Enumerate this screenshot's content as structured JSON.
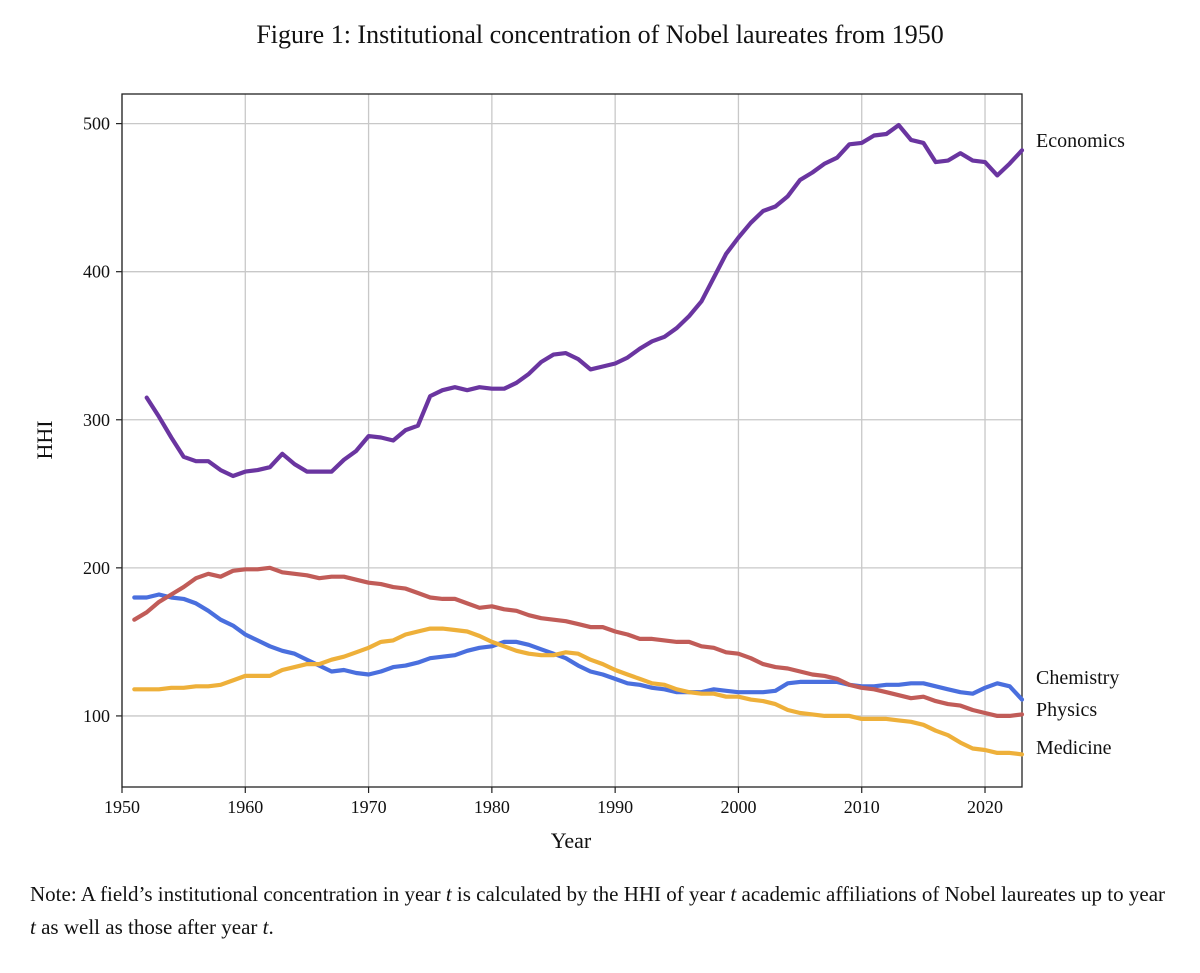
{
  "figure": {
    "caption": "Figure 1: Institutional concentration of Nobel laureates from 1950",
    "note": {
      "p1": "Note: A field’s institutional concentration in year ",
      "t1": "t",
      "p2": " is calculated by the HHI of year ",
      "t2": "t",
      "p3": " academic affiliations of Nobel laureates up to year ",
      "t3": "t",
      "p4": " as well as those after year ",
      "t4": "t",
      "p5": "."
    }
  },
  "chart_data": {
    "type": "line",
    "xlabel": "Year",
    "ylabel": "HHI",
    "xlim": [
      1950,
      2023
    ],
    "ylim": [
      52,
      520
    ],
    "xticks": [
      1950,
      1960,
      1970,
      1980,
      1990,
      2000,
      2010,
      2020
    ],
    "yticks": [
      100,
      200,
      300,
      400,
      500
    ],
    "grid": true,
    "legend": "inline-right",
    "series": [
      {
        "name": "Economics",
        "color": "#6a35a0",
        "x": [
          1952,
          1953,
          1954,
          1955,
          1956,
          1957,
          1958,
          1959,
          1960,
          1961,
          1962,
          1963,
          1964,
          1965,
          1966,
          1967,
          1968,
          1969,
          1970,
          1971,
          1972,
          1973,
          1974,
          1975,
          1976,
          1977,
          1978,
          1979,
          1980,
          1981,
          1982,
          1983,
          1984,
          1985,
          1986,
          1987,
          1988,
          1989,
          1990,
          1991,
          1992,
          1993,
          1994,
          1995,
          1996,
          1997,
          1998,
          1999,
          2000,
          2001,
          2002,
          2003,
          2004,
          2005,
          2006,
          2007,
          2008,
          2009,
          2010,
          2011,
          2012,
          2013,
          2014,
          2015,
          2016,
          2017,
          2018,
          2019,
          2020,
          2021,
          2022,
          2023
        ],
        "values": [
          315,
          302,
          288,
          275,
          272,
          272,
          266,
          262,
          265,
          266,
          268,
          277,
          270,
          265,
          265,
          265,
          273,
          279,
          289,
          288,
          286,
          293,
          296,
          316,
          320,
          322,
          320,
          322,
          321,
          321,
          325,
          331,
          339,
          344,
          345,
          341,
          334,
          336,
          338,
          342,
          348,
          353,
          356,
          362,
          370,
          380,
          396,
          412,
          423,
          433,
          441,
          444,
          451,
          462,
          467,
          473,
          477,
          486,
          487,
          492,
          493,
          499,
          489,
          487,
          474,
          475,
          480,
          475,
          474,
          465,
          473,
          482
        ]
      },
      {
        "name": "Chemistry",
        "color": "#4a6fde",
        "x": [
          1951,
          1952,
          1953,
          1954,
          1955,
          1956,
          1957,
          1958,
          1959,
          1960,
          1961,
          1962,
          1963,
          1964,
          1965,
          1966,
          1967,
          1968,
          1969,
          1970,
          1971,
          1972,
          1973,
          1974,
          1975,
          1976,
          1977,
          1978,
          1979,
          1980,
          1981,
          1982,
          1983,
          1984,
          1985,
          1986,
          1987,
          1988,
          1989,
          1990,
          1991,
          1992,
          1993,
          1994,
          1995,
          1996,
          1997,
          1998,
          1999,
          2000,
          2001,
          2002,
          2003,
          2004,
          2005,
          2006,
          2007,
          2008,
          2009,
          2010,
          2011,
          2012,
          2013,
          2014,
          2015,
          2016,
          2017,
          2018,
          2019,
          2020,
          2021,
          2022,
          2023
        ],
        "values": [
          180,
          180,
          182,
          180,
          179,
          176,
          171,
          165,
          161,
          155,
          151,
          147,
          144,
          142,
          138,
          134,
          130,
          131,
          129,
          128,
          130,
          133,
          134,
          136,
          139,
          140,
          141,
          144,
          146,
          147,
          150,
          150,
          148,
          145,
          142,
          139,
          134,
          130,
          128,
          125,
          122,
          121,
          119,
          118,
          116,
          116,
          116,
          118,
          117,
          116,
          116,
          116,
          117,
          122,
          123,
          123,
          123,
          123,
          121,
          120,
          120,
          121,
          121,
          122,
          122,
          120,
          118,
          116,
          115,
          119,
          122,
          120,
          111
        ]
      },
      {
        "name": "Physics",
        "color": "#c15c58",
        "x": [
          1951,
          1952,
          1953,
          1954,
          1955,
          1956,
          1957,
          1958,
          1959,
          1960,
          1961,
          1962,
          1963,
          1964,
          1965,
          1966,
          1967,
          1968,
          1969,
          1970,
          1971,
          1972,
          1973,
          1974,
          1975,
          1976,
          1977,
          1978,
          1979,
          1980,
          1981,
          1982,
          1983,
          1984,
          1985,
          1986,
          1987,
          1988,
          1989,
          1990,
          1991,
          1992,
          1993,
          1994,
          1995,
          1996,
          1997,
          1998,
          1999,
          2000,
          2001,
          2002,
          2003,
          2004,
          2005,
          2006,
          2007,
          2008,
          2009,
          2010,
          2011,
          2012,
          2013,
          2014,
          2015,
          2016,
          2017,
          2018,
          2019,
          2020,
          2021,
          2022,
          2023
        ],
        "values": [
          165,
          170,
          177,
          182,
          187,
          193,
          196,
          194,
          198,
          199,
          199,
          200,
          197,
          196,
          195,
          193,
          194,
          194,
          192,
          190,
          189,
          187,
          186,
          183,
          180,
          179,
          179,
          176,
          173,
          174,
          172,
          171,
          168,
          166,
          165,
          164,
          162,
          160,
          160,
          157,
          155,
          152,
          152,
          151,
          150,
          150,
          147,
          146,
          143,
          142,
          139,
          135,
          133,
          132,
          130,
          128,
          127,
          125,
          121,
          119,
          118,
          116,
          114,
          112,
          113,
          110,
          108,
          107,
          104,
          102,
          100,
          100,
          101
        ]
      },
      {
        "name": "Medicine",
        "color": "#eeb03a",
        "x": [
          1951,
          1952,
          1953,
          1954,
          1955,
          1956,
          1957,
          1958,
          1959,
          1960,
          1961,
          1962,
          1963,
          1964,
          1965,
          1966,
          1967,
          1968,
          1969,
          1970,
          1971,
          1972,
          1973,
          1974,
          1975,
          1976,
          1977,
          1978,
          1979,
          1980,
          1981,
          1982,
          1983,
          1984,
          1985,
          1986,
          1987,
          1988,
          1989,
          1990,
          1991,
          1992,
          1993,
          1994,
          1995,
          1996,
          1997,
          1998,
          1999,
          2000,
          2001,
          2002,
          2003,
          2004,
          2005,
          2006,
          2007,
          2008,
          2009,
          2010,
          2011,
          2012,
          2013,
          2014,
          2015,
          2016,
          2017,
          2018,
          2019,
          2020,
          2021,
          2022,
          2023
        ],
        "values": [
          118,
          118,
          118,
          119,
          119,
          120,
          120,
          121,
          124,
          127,
          127,
          127,
          131,
          133,
          135,
          135,
          138,
          140,
          143,
          146,
          150,
          151,
          155,
          157,
          159,
          159,
          158,
          157,
          154,
          150,
          147,
          144,
          142,
          141,
          141,
          143,
          142,
          138,
          135,
          131,
          128,
          125,
          122,
          121,
          118,
          116,
          115,
          115,
          113,
          113,
          111,
          110,
          108,
          104,
          102,
          101,
          100,
          100,
          100,
          98,
          98,
          98,
          97,
          96,
          94,
          90,
          87,
          82,
          78,
          77,
          75,
          75,
          74
        ]
      }
    ]
  }
}
